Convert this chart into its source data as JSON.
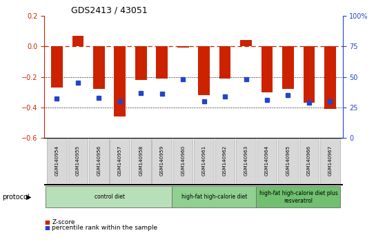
{
  "title": "GDS2413 / 43051",
  "samples": [
    "GSM140954",
    "GSM140955",
    "GSM140956",
    "GSM140957",
    "GSM140958",
    "GSM140959",
    "GSM140960",
    "GSM140961",
    "GSM140962",
    "GSM140963",
    "GSM140964",
    "GSM140965",
    "GSM140966",
    "GSM140967"
  ],
  "zscore": [
    -0.27,
    0.07,
    -0.28,
    -0.46,
    -0.22,
    -0.21,
    -0.01,
    -0.32,
    -0.21,
    0.04,
    -0.3,
    -0.28,
    -0.37,
    -0.41
  ],
  "pct_rank": [
    32,
    45,
    33,
    30,
    37,
    36,
    48,
    30,
    34,
    48,
    31,
    35,
    29,
    30
  ],
  "groups": [
    {
      "label": "control diet",
      "start": 0,
      "end": 6,
      "color": "#b8e0b8"
    },
    {
      "label": "high-fat high-calorie diet",
      "start": 6,
      "end": 10,
      "color": "#90d090"
    },
    {
      "label": "high-fat high-calorie diet plus\nresveratrol",
      "start": 10,
      "end": 14,
      "color": "#70c070"
    }
  ],
  "bar_color": "#cc2200",
  "dot_color": "#2244cc",
  "dashed_color": "#cc2200",
  "left_ylim": [
    -0.6,
    0.2
  ],
  "right_ylim": [
    0,
    100
  ],
  "left_yticks": [
    -0.6,
    -0.4,
    -0.2,
    0.0,
    0.2
  ],
  "right_yticks": [
    0,
    25,
    50,
    75,
    100
  ],
  "right_yticklabels": [
    "0",
    "25",
    "50",
    "75",
    "100%"
  ],
  "dotted_lines": [
    -0.2,
    -0.4
  ],
  "background_color": "#ffffff",
  "protocol_label": "protocol",
  "legend_items": [
    {
      "color": "#cc2200",
      "label": "Z-score"
    },
    {
      "color": "#2244cc",
      "label": "percentile rank within the sample"
    }
  ]
}
